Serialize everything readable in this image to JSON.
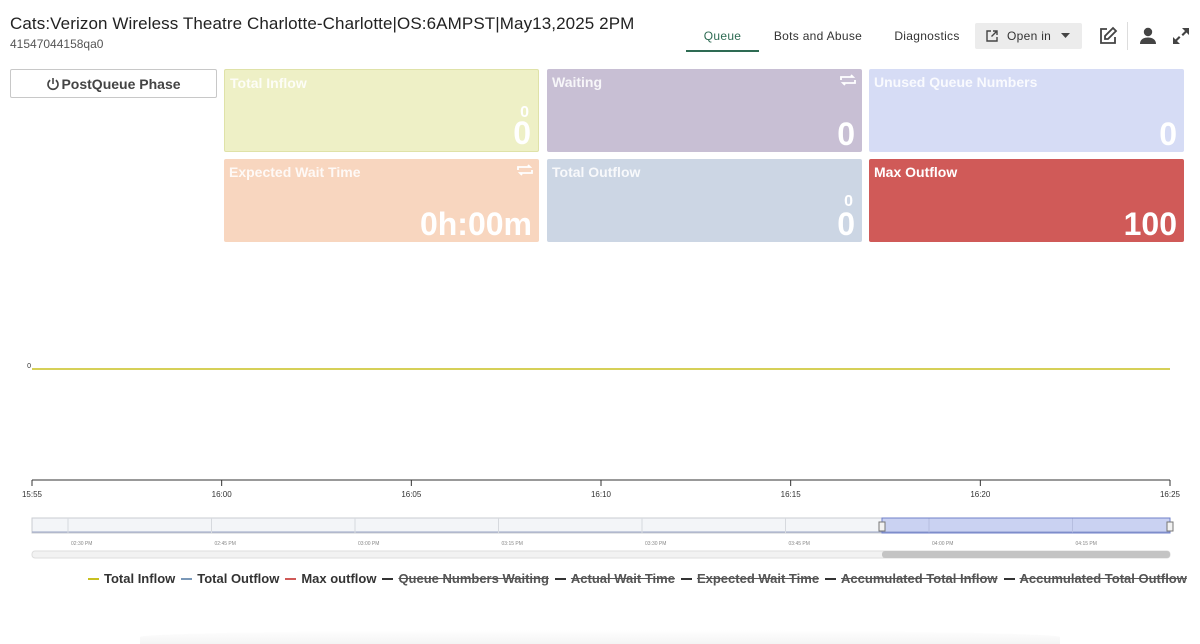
{
  "header": {
    "title": "Cats:Verizon Wireless Theatre Charlotte-Charlotte|OS:6AMPST|May13,2025 2PM",
    "subtitle": "41547044158qa0"
  },
  "tabs": [
    {
      "label": "Queue",
      "active": true
    },
    {
      "label": "Bots and Abuse",
      "active": false
    },
    {
      "label": "Diagnostics",
      "active": false
    }
  ],
  "open_in": {
    "label": "Open in",
    "icon": "external-link-icon"
  },
  "header_icons": [
    "edit-icon",
    "user-icon",
    "expand-icon"
  ],
  "phase_button": {
    "label": "PostQueue Phase",
    "icon": "power-icon"
  },
  "cards": {
    "total_inflow": {
      "title": "Total Inflow",
      "small": "0",
      "value": "0",
      "color": "#eef0c6"
    },
    "waiting": {
      "title": "Waiting",
      "value": "0",
      "color": "#c8bfd4"
    },
    "unused_queue_numbers": {
      "title": "Unused Queue Numbers",
      "value": "0",
      "color": "#d6dcf5"
    },
    "expected_wait_time": {
      "title": "Expected Wait Time",
      "value": "0h:00m",
      "color": "#f8d6bf"
    },
    "total_outflow": {
      "title": "Total Outflow",
      "small": "0",
      "value": "0",
      "color": "#ccd6e4"
    },
    "max_outflow": {
      "title": "Max Outflow",
      "value": "100",
      "color": "#d05a58"
    }
  },
  "chart_data": {
    "type": "line",
    "x": [
      "15:55",
      "16:00",
      "16:05",
      "16:10",
      "16:15",
      "16:20",
      "16:25"
    ],
    "series": [
      {
        "name": "Total Inflow",
        "color": "#c8c020",
        "values": [
          0,
          0,
          0,
          0,
          0,
          0,
          0
        ],
        "visible": true
      },
      {
        "name": "Total Outflow",
        "color": "#7a98b8",
        "visible": true
      },
      {
        "name": "Max outflow",
        "color": "#d05a58",
        "visible": true
      },
      {
        "name": "Queue Numbers Waiting",
        "color": "#333333",
        "visible": false
      },
      {
        "name": "Actual Wait Time",
        "color": "#333333",
        "visible": false
      },
      {
        "name": "Expected Wait Time",
        "color": "#333333",
        "visible": false
      },
      {
        "name": "Accumulated Total Inflow",
        "color": "#333333",
        "visible": false
      },
      {
        "name": "Accumulated Total Outflow",
        "color": "#333333",
        "visible": false
      }
    ],
    "y_tick_labels": [
      "0"
    ],
    "navigator_ticks": [
      "02:30 PM",
      "02:45 PM",
      "03:00 PM",
      "03:15 PM",
      "03:30 PM",
      "03:45 PM",
      "04:00 PM",
      "04:15 PM"
    ],
    "grid": false,
    "legend_position": "bottom"
  }
}
